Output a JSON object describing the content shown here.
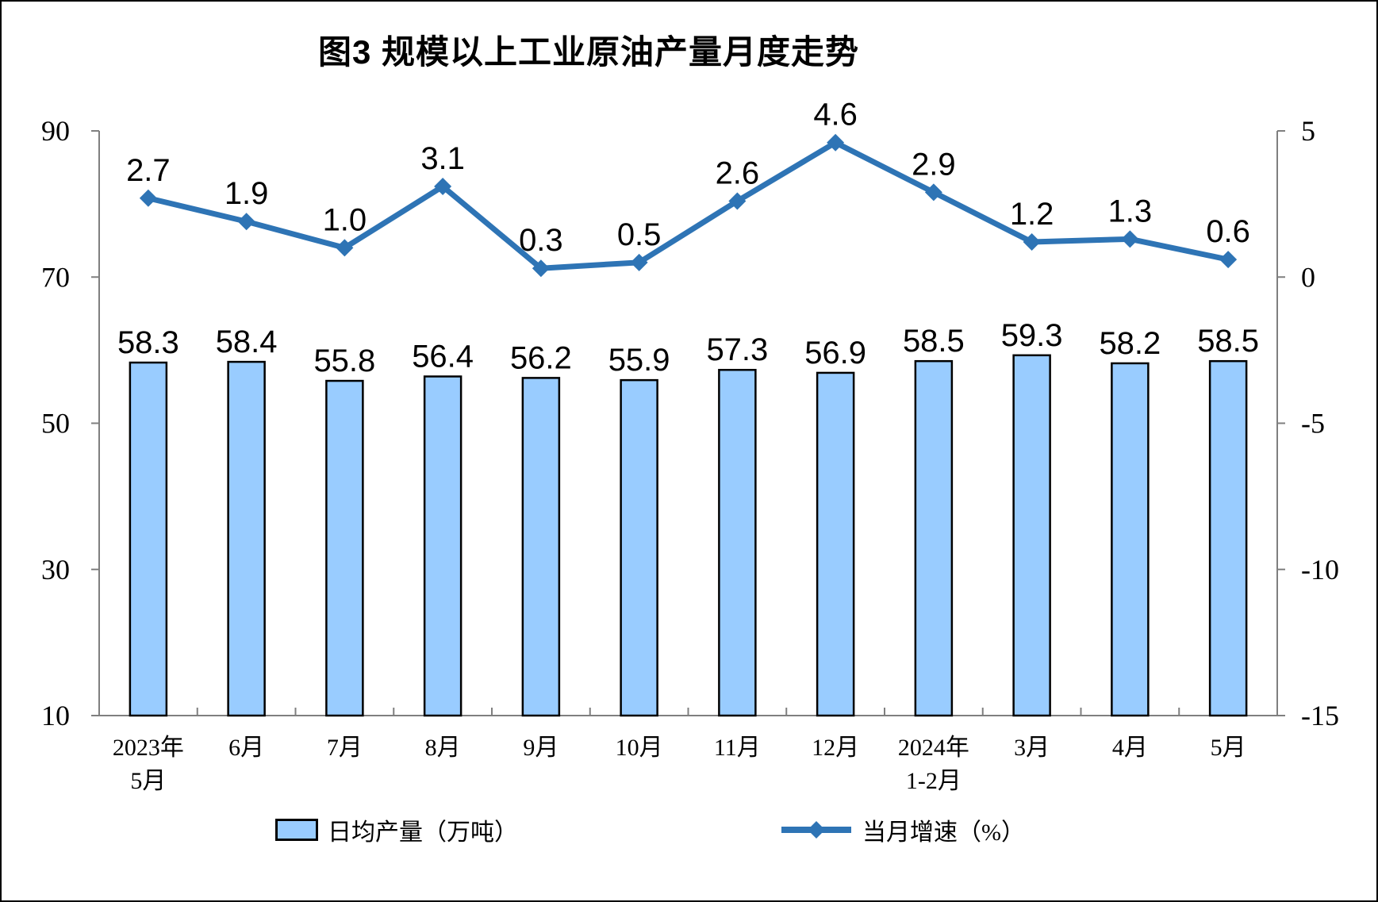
{
  "title": "图3 规模以上工业原油产量月度走势",
  "legend": {
    "bar": {
      "label": "日均产量（万吨）",
      "icon": "bar-swatch"
    },
    "line": {
      "label": "当月增速（%）",
      "icon": "line-with-diamond-marker"
    }
  },
  "colors": {
    "bar_fill": "#99CCFF",
    "bar_border": "#000000",
    "line": "#2E74B5",
    "axis": "#7F7F7F",
    "text": "#000000"
  },
  "chart_data": {
    "type": "bar",
    "subtype": "bar+line combo, dual axis",
    "title": "图3 规模以上工业原油产量月度走势",
    "categories": [
      "2023年\n5月",
      "6月",
      "7月",
      "8月",
      "9月",
      "10月",
      "11月",
      "12月",
      "2024年\n1-2月",
      "3月",
      "4月",
      "5月"
    ],
    "series": [
      {
        "name": "日均产量（万吨）",
        "type": "bar",
        "axis": "left",
        "values": [
          58.3,
          58.4,
          55.8,
          56.4,
          56.2,
          55.9,
          57.3,
          56.9,
          58.5,
          59.3,
          58.2,
          58.5
        ],
        "labels": [
          "58.3",
          "58.4",
          "55.8",
          "56.4",
          "56.2",
          "55.9",
          "57.3",
          "56.9",
          "58.5",
          "59.3",
          "58.2",
          "58.5"
        ]
      },
      {
        "name": "当月增速（%）",
        "type": "line",
        "axis": "right",
        "values": [
          2.7,
          1.9,
          1.0,
          3.1,
          0.3,
          0.5,
          2.6,
          4.6,
          2.9,
          1.2,
          1.3,
          0.6
        ],
        "labels": [
          "2.7",
          "1.9",
          "1.0",
          "3.1",
          "0.3",
          "0.5",
          "2.6",
          "4.6",
          "2.9",
          "1.2",
          "1.3",
          "0.6"
        ]
      }
    ],
    "left_axis": {
      "range": [
        10,
        90
      ],
      "ticks": [
        "90",
        "70",
        "50",
        "30",
        "10"
      ]
    },
    "right_axis": {
      "range": [
        -15,
        5
      ],
      "ticks": [
        "5",
        "0",
        "-5",
        "-10",
        "-15"
      ]
    },
    "grid": false,
    "legend_position": "bottom"
  }
}
